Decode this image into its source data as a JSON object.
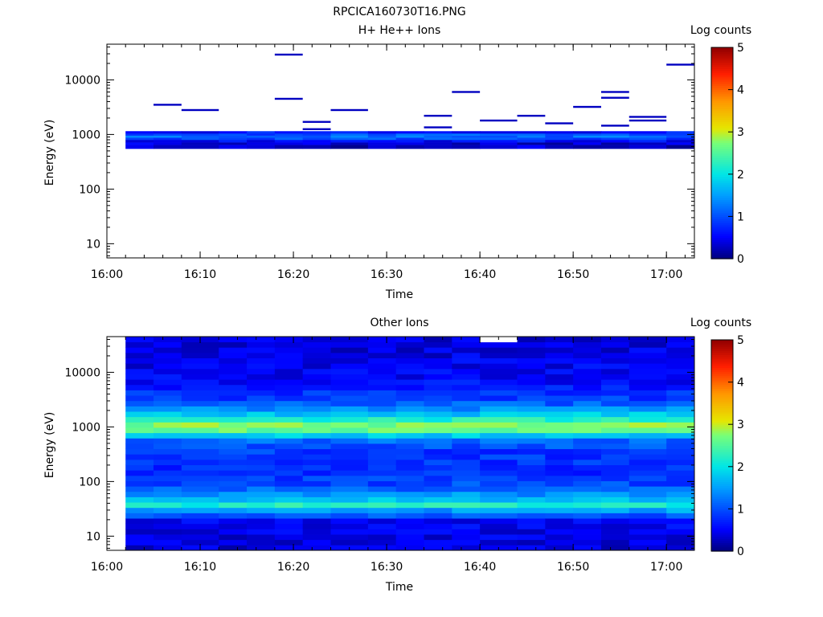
{
  "figure_title": "RPCICA160730T16.PNG",
  "chart_data": [
    {
      "type": "heatmap",
      "title": "H+ He++ Ions",
      "xlabel": "Time",
      "ylabel": "Energy (eV)",
      "x_ticks": [
        "16:00",
        "16:10",
        "16:20",
        "16:30",
        "16:40",
        "16:50",
        "17:00"
      ],
      "x_range": [
        "16:00",
        "17:03"
      ],
      "y_scale": "log",
      "y_ticks": [
        "10",
        "100",
        "1000",
        "10000"
      ],
      "y_range": [
        5.5,
        45000
      ],
      "colorbar": {
        "label": "Log counts",
        "ticks": [
          "0",
          "1",
          "2",
          "3",
          "4",
          "5"
        ],
        "range": [
          0,
          5
        ],
        "colormap": "rainbow"
      },
      "time_bins_start": [
        "16:02",
        "16:05",
        "16:08",
        "16:12",
        "16:15",
        "16:18",
        "16:21",
        "16:24",
        "16:28",
        "16:31",
        "16:34",
        "16:37",
        "16:40",
        "16:44",
        "16:47",
        "16:50",
        "16:53",
        "16:56",
        "17:00"
      ],
      "band": {
        "energy_range_eV": [
          550,
          1150
        ],
        "levels": [
          [
            550,
            0.25
          ],
          [
            650,
            0.35
          ],
          [
            720,
            0.55
          ],
          [
            800,
            0.95
          ],
          [
            880,
            1.15
          ],
          [
            960,
            1.0
          ],
          [
            1050,
            0.6
          ]
        ]
      },
      "sparse_points_eV": [
        [
          [],
          [
            3500
          ],
          [
            2800
          ],
          [],
          [],
          [
            29000,
            4500
          ],
          [
            1700,
            1250
          ],
          [
            2800
          ],
          [],
          [],
          [
            2200,
            1350
          ],
          [
            6000
          ],
          [
            1800
          ],
          [
            2200
          ],
          [
            1600
          ],
          [
            3200
          ],
          [
            6000,
            4700,
            1450
          ],
          [
            2100,
            1800
          ],
          [
            19000
          ]
        ]
      ]
    },
    {
      "type": "heatmap",
      "title": "Other Ions",
      "xlabel": "Time",
      "ylabel": "Energy (eV)",
      "x_ticks": [
        "16:00",
        "16:10",
        "16:20",
        "16:30",
        "16:40",
        "16:50",
        "17:00"
      ],
      "x_range": [
        "16:00",
        "17:03"
      ],
      "y_scale": "log",
      "y_ticks": [
        "10",
        "100",
        "1000",
        "10000"
      ],
      "y_range": [
        5.5,
        45000
      ],
      "colorbar": {
        "label": "Log counts",
        "ticks": [
          "0",
          "1",
          "2",
          "3",
          "4",
          "5"
        ],
        "range": [
          0,
          5
        ],
        "colormap": "rainbow"
      },
      "time_bins_start": [
        "16:02",
        "16:05",
        "16:08",
        "16:12",
        "16:15",
        "16:18",
        "16:21",
        "16:24",
        "16:28",
        "16:31",
        "16:34",
        "16:37",
        "16:40",
        "16:44",
        "16:47",
        "16:50",
        "16:53",
        "16:56",
        "17:00"
      ],
      "energy_profile": [
        [
          6,
          0.35
        ],
        [
          20,
          0.5
        ],
        [
          27,
          1.4
        ],
        [
          33,
          1.6
        ],
        [
          38,
          2.3
        ],
        [
          45,
          1.8
        ],
        [
          55,
          1.5
        ],
        [
          80,
          1.0
        ],
        [
          150,
          0.75
        ],
        [
          350,
          0.85
        ],
        [
          600,
          1.2
        ],
        [
          800,
          2.4
        ],
        [
          1000,
          3.0
        ],
        [
          1200,
          2.5
        ],
        [
          1500,
          2.0
        ],
        [
          2000,
          1.5
        ],
        [
          3000,
          0.9
        ],
        [
          8000,
          0.5
        ],
        [
          45000,
          0.35
        ]
      ]
    }
  ]
}
